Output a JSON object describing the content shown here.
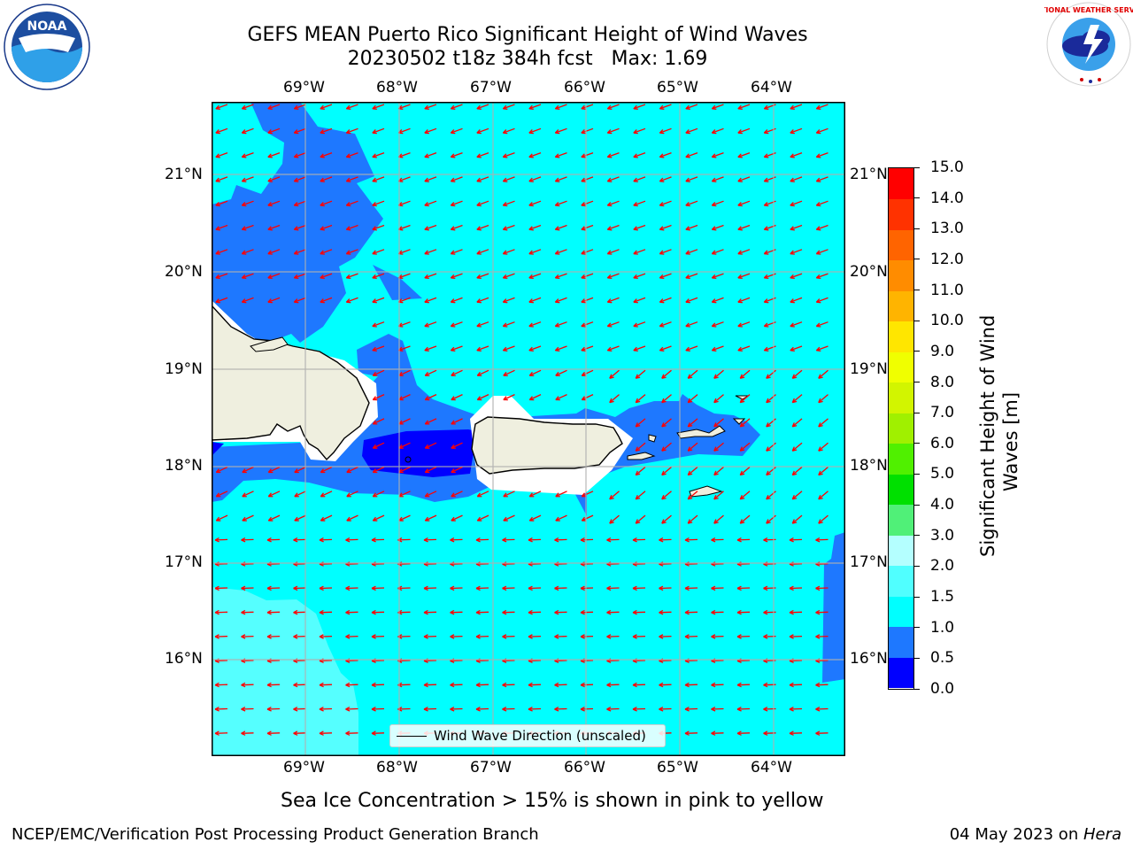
{
  "header": {
    "title_line1": "GEFS MEAN Puerto Rico Significant Height of Wind Waves",
    "title_line2": "20230502 t18z 384h fcst   Max: 1.69"
  },
  "logos": {
    "left": "NOAA",
    "right": "NATIONAL WEATHER SERVICE"
  },
  "map": {
    "lon_labels": [
      "69°W",
      "68°W",
      "67°W",
      "66°W",
      "65°W",
      "64°W"
    ],
    "lat_labels": [
      "21°N",
      "20°N",
      "19°N",
      "18°N",
      "17°N",
      "16°N"
    ],
    "ocean_color": "#00ffff",
    "land_color": "#efefdf",
    "arrow_color": "#ff0000",
    "legend_label": "Wind Wave Direction (unscaled)"
  },
  "colorbar": {
    "title": "Significant Height of Wind\nWaves [m]",
    "labels": [
      "0.0",
      "0.5",
      "1.0",
      "1.5",
      "2.0",
      "3.0",
      "4.0",
      "5.0",
      "6.0",
      "7.0",
      "8.0",
      "9.0",
      "10.0",
      "11.0",
      "12.0",
      "13.0",
      "14.0",
      "15.0"
    ],
    "colors": [
      "#0000ff",
      "#1e78ff",
      "#00ffff",
      "#50ffff",
      "#b4ffff",
      "#50f078",
      "#00e000",
      "#50f000",
      "#a0f000",
      "#d2f500",
      "#f0ff00",
      "#ffe600",
      "#ffb400",
      "#ff8c00",
      "#ff6400",
      "#ff3200",
      "#ff0000"
    ]
  },
  "note": "Sea Ice Concentration > 15% is shown in pink to yellow",
  "footer": {
    "left": "NCEP/EMC/Verification Post Processing Product Generation Branch",
    "right_date": "04 May 2023 on ",
    "right_host": "Hera"
  }
}
